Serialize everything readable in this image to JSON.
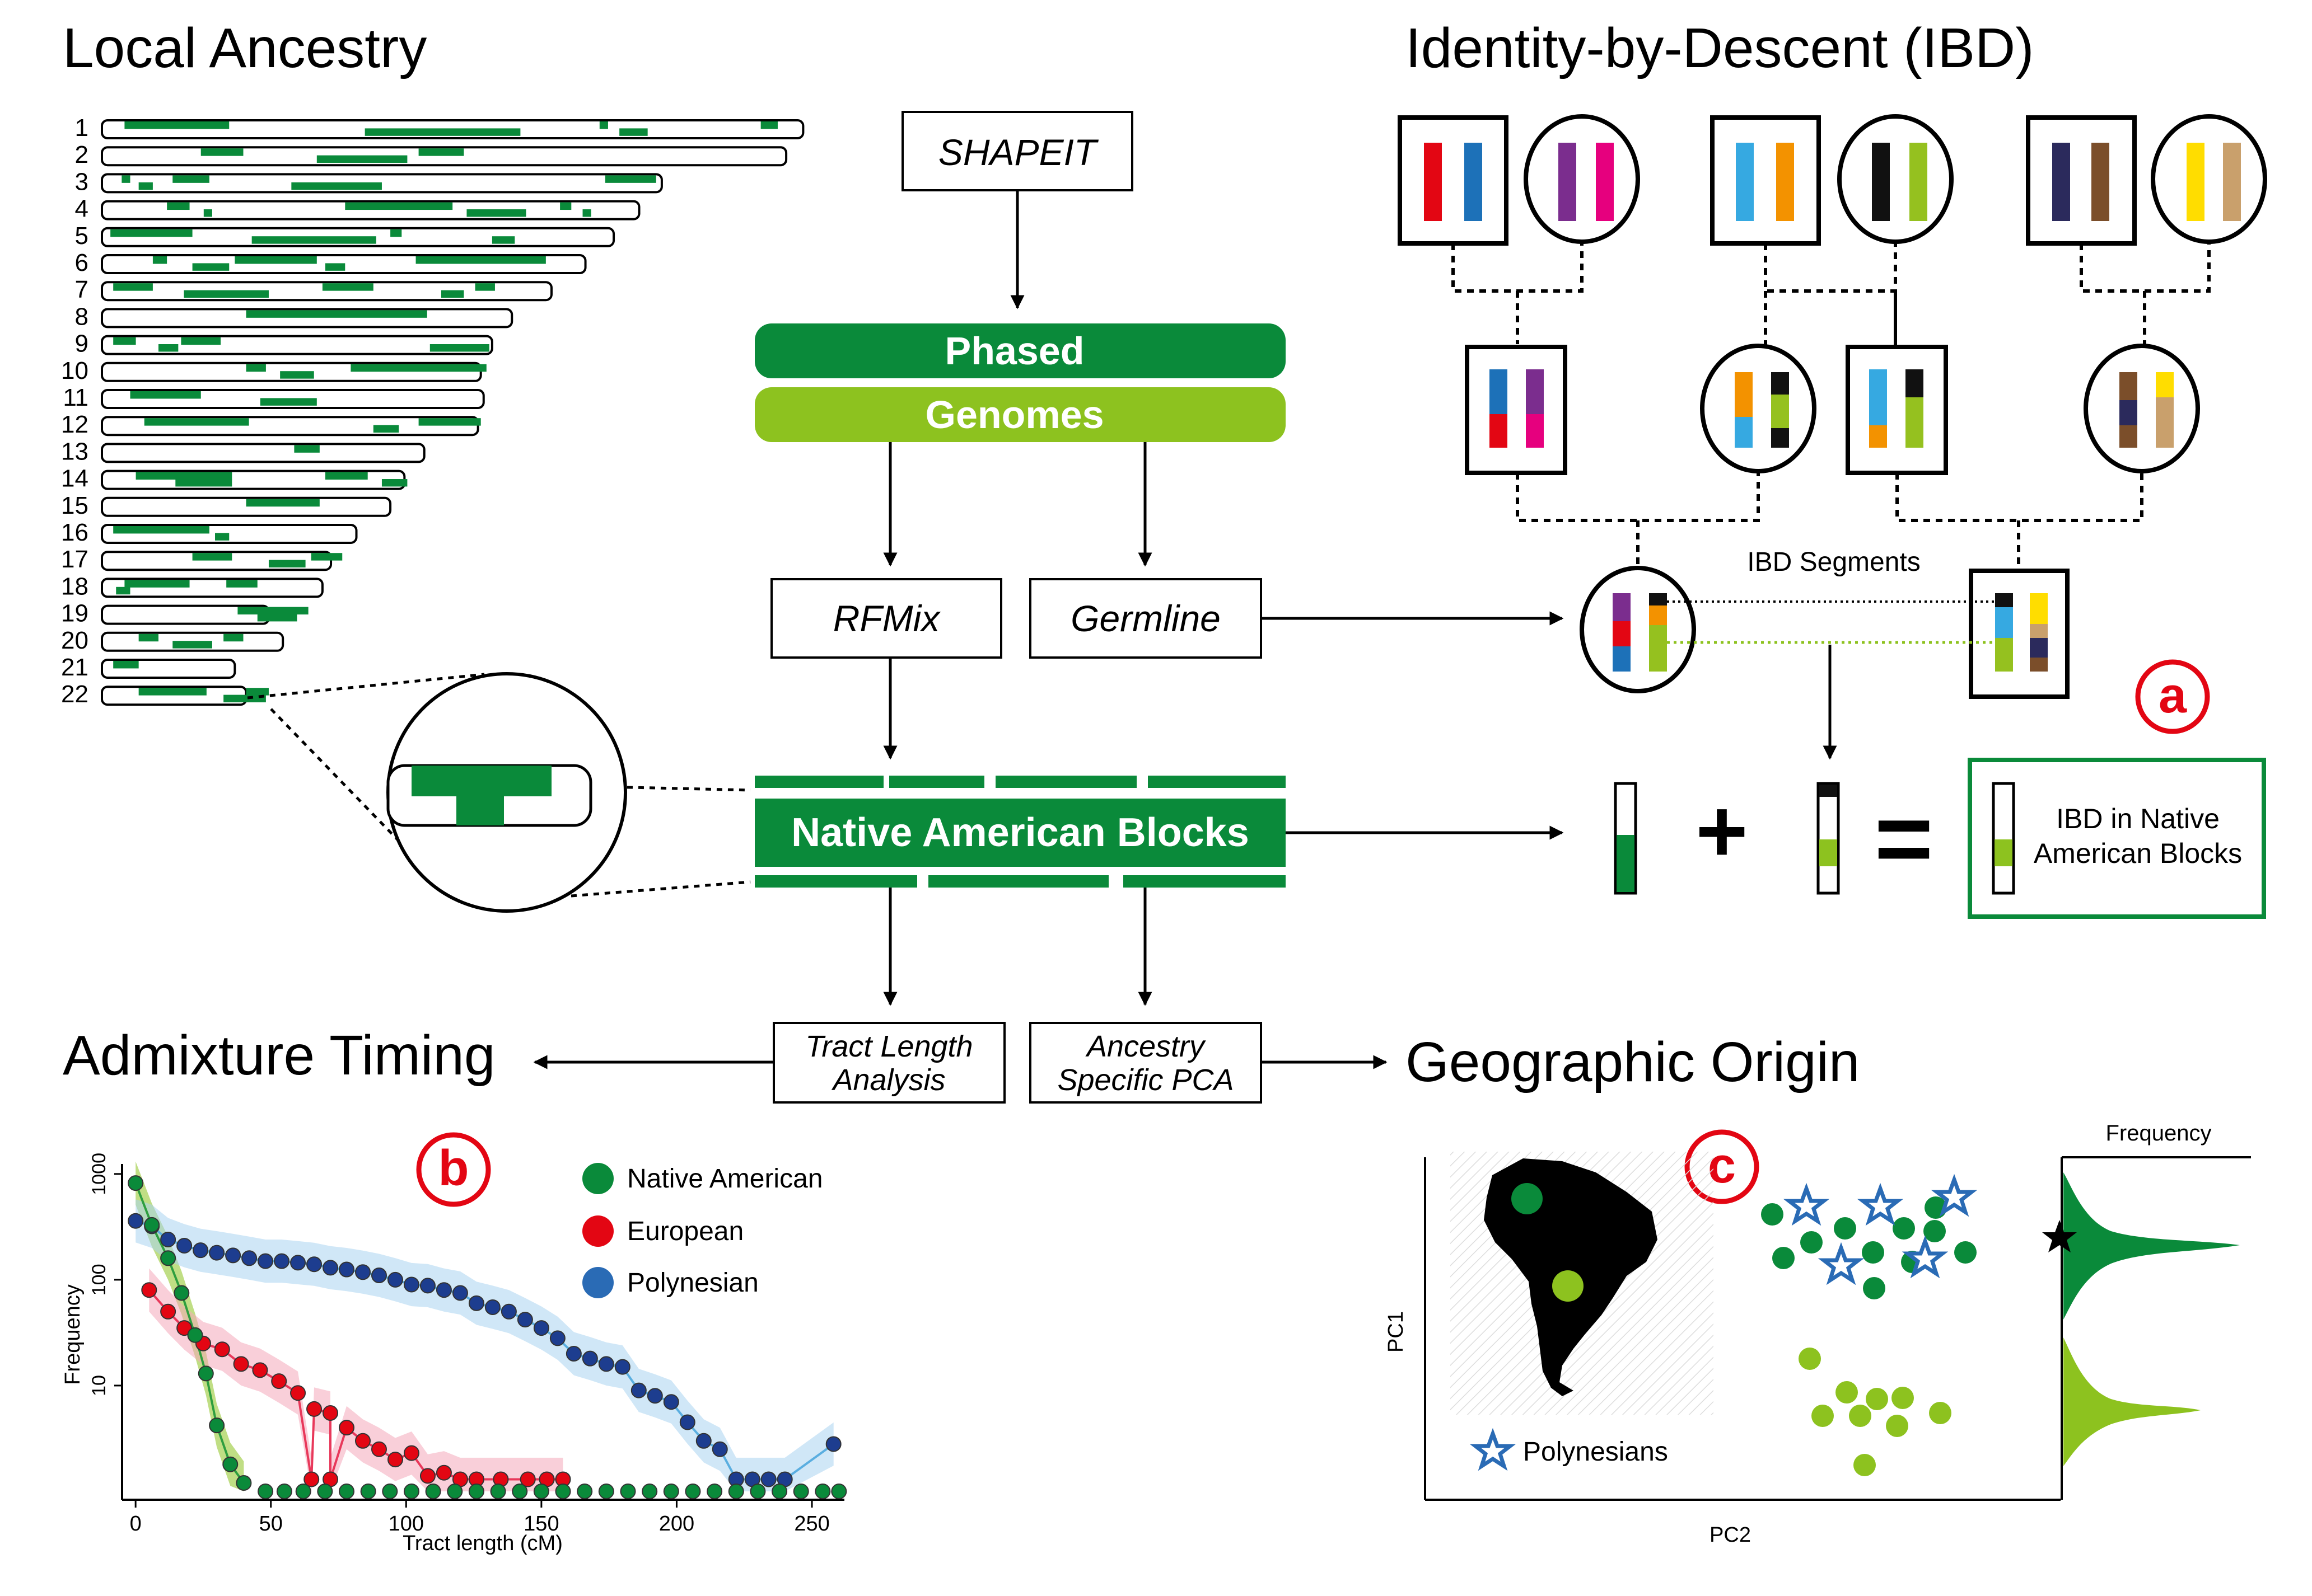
{
  "colors": {
    "dark_green": "#0a8a3a",
    "light_green": "#8dc21f",
    "red_badge": "#e30613",
    "native_american": "#0a8a3a",
    "european": "#e30613",
    "polynesian": "#2a6bb5",
    "polynesian_dark": "#1d3d8f"
  },
  "sections": {
    "local_ancestry": "Local Ancestry",
    "ibd": "Identity-by-Descent (IBD)",
    "admixture_timing": "Admixture Timing",
    "geographic_origin": "Geographic Origin"
  },
  "flow": {
    "shapeit": "SHAPEIT",
    "phased": "Phased",
    "genomes": "Genomes",
    "rfmix": "RFMix",
    "germline": "Germline",
    "native_american_blocks": "Native American Blocks",
    "tract_length_line1": "Tract Length",
    "tract_length_line2": "Analysis",
    "ancestry_pca_line1": "Ancestry",
    "ancestry_pca_line2": "Specific PCA"
  },
  "chromosomes": {
    "labels": [
      "1",
      "2",
      "3",
      "4",
      "5",
      "6",
      "7",
      "8",
      "9",
      "10",
      "11",
      "12",
      "13",
      "14",
      "15",
      "16",
      "17",
      "18",
      "19",
      "20",
      "21",
      "22"
    ],
    "lengths": [
      248,
      242,
      198,
      190,
      181,
      171,
      159,
      145,
      138,
      134,
      135,
      133,
      114,
      107,
      102,
      90,
      81,
      78,
      59,
      64,
      47,
      51
    ],
    "blocks": [
      [
        [
          8,
          45
        ],
        [
          93,
          148
        ],
        [
          176,
          179
        ],
        [
          183,
          193
        ],
        [
          233,
          239
        ]
      ],
      [
        [
          35,
          50
        ],
        [
          76,
          108
        ],
        [
          112,
          128
        ]
      ],
      [
        [
          7,
          10
        ],
        [
          13,
          18
        ],
        [
          25,
          38
        ],
        [
          67,
          99
        ],
        [
          178,
          196
        ]
      ],
      [
        [
          23,
          31
        ],
        [
          36,
          39
        ],
        [
          86,
          124
        ],
        [
          129,
          150
        ],
        [
          162,
          166
        ],
        [
          170,
          173
        ]
      ],
      [
        [
          3,
          32
        ],
        [
          53,
          97
        ],
        [
          102,
          106
        ],
        [
          138,
          146
        ]
      ],
      [
        [
          18,
          23
        ],
        [
          32,
          45
        ],
        [
          47,
          76
        ],
        [
          79,
          86
        ],
        [
          111,
          157
        ]
      ],
      [
        [
          4,
          18
        ],
        [
          29,
          59
        ],
        [
          78,
          96
        ],
        [
          120,
          128
        ],
        [
          132,
          139
        ]
      ],
      [
        [
          51,
          115
        ]
      ],
      [
        [
          4,
          12
        ],
        [
          20,
          27
        ],
        [
          28,
          42
        ],
        [
          116,
          137
        ]
      ],
      [
        [
          51,
          58
        ],
        [
          63,
          75
        ],
        [
          88,
          136
        ]
      ],
      [
        [
          10,
          35
        ],
        [
          56,
          76
        ]
      ],
      [
        [
          15,
          52
        ],
        [
          96,
          105
        ],
        [
          112,
          134
        ]
      ],
      [
        [
          68,
          77
        ]
      ],
      [
        [
          12,
          46
        ],
        [
          26,
          46
        ],
        [
          79,
          94
        ],
        [
          99,
          108
        ]
      ],
      [
        [
          51,
          77
        ]
      ],
      [
        [
          4,
          38
        ],
        [
          40,
          45
        ]
      ],
      [
        [
          32,
          46
        ],
        [
          59,
          72
        ],
        [
          74,
          85
        ]
      ],
      [
        [
          8,
          31
        ],
        [
          5,
          10
        ],
        [
          44,
          55
        ]
      ],
      [
        [
          48,
          73
        ],
        [
          55,
          69
        ]
      ],
      [
        [
          13,
          20
        ],
        [
          25,
          39
        ],
        [
          43,
          50
        ]
      ],
      [
        [
          4,
          13
        ]
      ],
      [
        [
          13,
          37
        ],
        [
          43,
          58
        ],
        [
          51,
          59
        ]
      ]
    ]
  },
  "ibd": {
    "segments_label": "IBD Segments",
    "badge": "a",
    "result_label_line1": "IBD in Native",
    "result_label_line2": "American Blocks",
    "plus": "+",
    "equals": "=",
    "parent_colors": [
      [
        "#e30613",
        "#1d71b8"
      ],
      [
        "#7b2d8e",
        "#e6007e"
      ],
      [
        "#36a9e1",
        "#f39200"
      ],
      [
        "#111111",
        "#95c11f"
      ],
      [
        "#2b2a5c",
        "#7b4e2a"
      ],
      [
        "#ffdd00",
        "#c9a06c"
      ]
    ]
  },
  "admixture": {
    "badge": "b",
    "legend": [
      "Native American",
      "European",
      "Polynesian"
    ],
    "ylabel": "Frequency",
    "xlabel": "Tract length (cM)",
    "ytick_labels": [
      "1000",
      "100",
      "10"
    ],
    "xtick_labels": [
      "0",
      "50",
      "100",
      "150",
      "200",
      "250"
    ]
  },
  "geographic": {
    "badge": "c",
    "xlabel": "PC2",
    "ylabel": "PC1",
    "freq_label": "Frequency",
    "polynesians_label": "Polynesians"
  },
  "chart_data": {
    "type": "scatter",
    "xlabel": "Tract length (cM)",
    "ylabel": "Frequency",
    "x_range": [
      -5,
      262
    ],
    "y_scale": "log",
    "y_ticks": [
      10,
      100,
      1000
    ],
    "series": [
      {
        "name": "Native American",
        "color": "#0a8a3a",
        "points": [
          [
            0,
            820
          ],
          [
            6,
            330
          ],
          [
            12,
            160
          ],
          [
            17,
            75
          ],
          [
            22,
            30
          ],
          [
            26,
            13
          ],
          [
            30,
            4.2
          ],
          [
            35,
            1.8
          ],
          [
            40,
            1.2
          ],
          [
            48,
            1
          ],
          [
            55,
            1
          ],
          [
            62,
            1
          ],
          [
            70,
            1
          ],
          [
            78,
            1
          ],
          [
            86,
            1
          ],
          [
            94,
            1
          ],
          [
            102,
            1
          ],
          [
            110,
            1
          ],
          [
            118,
            1
          ],
          [
            126,
            1
          ],
          [
            134,
            1
          ],
          [
            142,
            1
          ],
          [
            150,
            1
          ],
          [
            158,
            1
          ],
          [
            166,
            1
          ],
          [
            174,
            1
          ],
          [
            182,
            1
          ],
          [
            190,
            1
          ],
          [
            198,
            1
          ],
          [
            206,
            1
          ],
          [
            214,
            1
          ],
          [
            222,
            1
          ],
          [
            230,
            1
          ],
          [
            238,
            1
          ],
          [
            246,
            1
          ],
          [
            254,
            1
          ],
          [
            260,
            1
          ]
        ]
      },
      {
        "name": "European",
        "color": "#e30613",
        "points": [
          [
            5,
            80
          ],
          [
            12,
            50
          ],
          [
            18,
            35
          ],
          [
            25,
            25
          ],
          [
            32,
            22
          ],
          [
            39,
            16
          ],
          [
            46,
            14
          ],
          [
            53,
            11
          ],
          [
            60,
            8.5
          ],
          [
            66,
            6
          ],
          [
            72,
            5.5
          ],
          [
            78,
            4
          ],
          [
            84,
            3
          ],
          [
            90,
            2.5
          ],
          [
            96,
            2
          ],
          [
            102,
            2.3
          ],
          [
            108,
            1.4
          ],
          [
            114,
            1.5
          ],
          [
            120,
            1.3
          ],
          [
            65,
            1.3
          ],
          [
            72,
            1.3
          ],
          [
            126,
            1.3
          ],
          [
            135,
            1.3
          ],
          [
            145,
            1.3
          ],
          [
            152,
            1.3
          ],
          [
            158,
            1.3
          ]
        ]
      },
      {
        "name": "Polynesian",
        "color": "#2a6bb5",
        "points": [
          [
            0,
            360
          ],
          [
            6,
            320
          ],
          [
            12,
            240
          ],
          [
            18,
            210
          ],
          [
            24,
            190
          ],
          [
            30,
            180
          ],
          [
            36,
            170
          ],
          [
            42,
            160
          ],
          [
            48,
            150
          ],
          [
            54,
            150
          ],
          [
            60,
            145
          ],
          [
            66,
            140
          ],
          [
            72,
            130
          ],
          [
            78,
            125
          ],
          [
            84,
            118
          ],
          [
            90,
            110
          ],
          [
            96,
            100
          ],
          [
            102,
            90
          ],
          [
            108,
            88
          ],
          [
            114,
            80
          ],
          [
            120,
            75
          ],
          [
            126,
            60
          ],
          [
            132,
            55
          ],
          [
            138,
            50
          ],
          [
            144,
            42
          ],
          [
            150,
            35
          ],
          [
            156,
            28
          ],
          [
            162,
            20
          ],
          [
            168,
            18
          ],
          [
            174,
            16
          ],
          [
            180,
            15
          ],
          [
            186,
            9
          ],
          [
            192,
            8
          ],
          [
            198,
            7
          ],
          [
            204,
            4.5
          ],
          [
            210,
            3
          ],
          [
            216,
            2.5
          ],
          [
            222,
            1.3
          ],
          [
            228,
            1.3
          ],
          [
            234,
            1.3
          ],
          [
            240,
            1.3
          ],
          [
            258,
            2.8
          ]
        ]
      }
    ]
  }
}
